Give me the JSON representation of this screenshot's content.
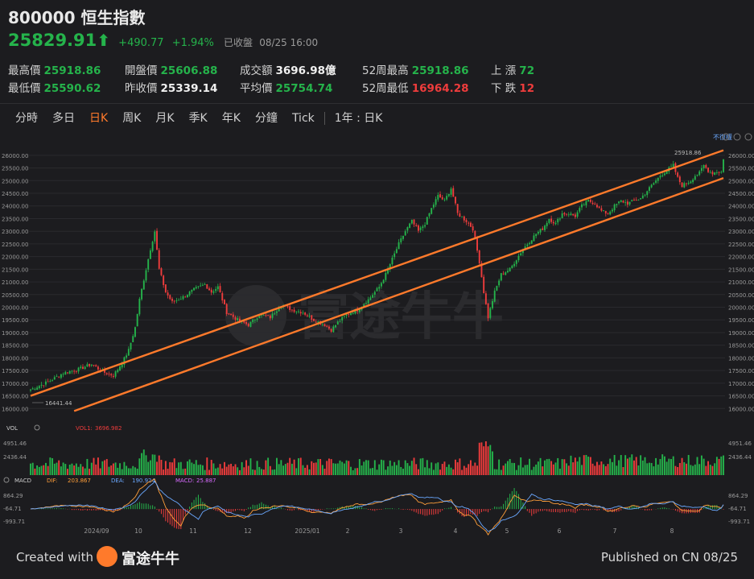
{
  "header": {
    "code": "800000",
    "name": "恒生指數",
    "price": "25829.91",
    "change": "+490.77",
    "change_pct": "+1.94%",
    "status": "已收盤",
    "time": "08/25 16:00"
  },
  "stats": [
    {
      "label": "最高價",
      "value": "25918.86",
      "tone": "g"
    },
    {
      "label": "開盤價",
      "value": "25606.88",
      "tone": "g"
    },
    {
      "label": "成交額",
      "value": "3696.98億",
      "tone": "w"
    },
    {
      "label": "52周最高",
      "value": "25918.86",
      "tone": "g"
    },
    {
      "label": "上  漲",
      "value": "72",
      "tone": "g"
    },
    {
      "label": "最低價",
      "value": "25590.62",
      "tone": "g"
    },
    {
      "label": "昨收價",
      "value": "25339.14",
      "tone": "w"
    },
    {
      "label": "平均價",
      "value": "25754.74",
      "tone": "g"
    },
    {
      "label": "52周最低",
      "value": "16964.28",
      "tone": "r"
    },
    {
      "label": "下  跌",
      "value": "12",
      "tone": "r"
    }
  ],
  "tabs": [
    "分時",
    "多日",
    "日K",
    "周K",
    "月K",
    "季K",
    "年K",
    "分鐘",
    "Tick"
  ],
  "active_tab": "日K",
  "range_label": "1年 : 日K",
  "chart_data": {
    "type": "candlestick",
    "right_label": "不復權",
    "y_ticks": [
      "26000.00",
      "25500.00",
      "25000.00",
      "24500.00",
      "24000.00",
      "23500.00",
      "23000.00",
      "22500.00",
      "22000.00",
      "21500.00",
      "21000.00",
      "20500.00",
      "20000.00",
      "19500.00",
      "19000.00",
      "18500.00",
      "18000.00",
      "17500.00",
      "17000.00",
      "16500.00",
      "16000.00"
    ],
    "ylim": [
      15850,
      26250
    ],
    "x_labels": [
      "2024/09",
      "10",
      "11",
      "12",
      "2025/01",
      "2",
      "3",
      "4",
      "5",
      "6",
      "7",
      "8"
    ],
    "annotation_high": "25918.86",
    "annotation_low": "16441.44",
    "close_path": [
      [
        0,
        16750
      ],
      [
        8,
        17050
      ],
      [
        15,
        17400
      ],
      [
        22,
        17550
      ],
      [
        28,
        17750
      ],
      [
        33,
        17450
      ],
      [
        38,
        17300
      ],
      [
        42,
        17800
      ],
      [
        45,
        18300
      ],
      [
        48,
        19200
      ],
      [
        50,
        20300
      ],
      [
        53,
        21500
      ],
      [
        55,
        22300
      ],
      [
        57,
        23000
      ],
      [
        59,
        21500
      ],
      [
        62,
        20600
      ],
      [
        65,
        20200
      ],
      [
        70,
        20400
      ],
      [
        75,
        20700
      ],
      [
        80,
        20900
      ],
      [
        83,
        20600
      ],
      [
        86,
        20800
      ],
      [
        90,
        19800
      ],
      [
        95,
        19500
      ],
      [
        100,
        19300
      ],
      [
        105,
        19700
      ],
      [
        110,
        19600
      ],
      [
        115,
        20100
      ],
      [
        120,
        19900
      ],
      [
        125,
        19800
      ],
      [
        130,
        19500
      ],
      [
        135,
        19300
      ],
      [
        138,
        19100
      ],
      [
        141,
        19400
      ],
      [
        145,
        19700
      ],
      [
        150,
        19900
      ],
      [
        155,
        20300
      ],
      [
        160,
        20800
      ],
      [
        163,
        21300
      ],
      [
        166,
        21900
      ],
      [
        169,
        22500
      ],
      [
        172,
        23000
      ],
      [
        175,
        23400
      ],
      [
        178,
        23000
      ],
      [
        181,
        23300
      ],
      [
        184,
        23900
      ],
      [
        187,
        24400
      ],
      [
        190,
        24200
      ],
      [
        193,
        24700
      ],
      [
        196,
        23700
      ],
      [
        200,
        23400
      ],
      [
        203,
        23100
      ],
      [
        206,
        21800
      ],
      [
        208,
        20600
      ],
      [
        210,
        19600
      ],
      [
        213,
        20600
      ],
      [
        216,
        21300
      ],
      [
        220,
        21500
      ],
      [
        223,
        21900
      ],
      [
        226,
        22300
      ],
      [
        229,
        22600
      ],
      [
        232,
        22900
      ],
      [
        235,
        23100
      ],
      [
        238,
        23500
      ],
      [
        241,
        23300
      ],
      [
        244,
        23700
      ],
      [
        247,
        23700
      ],
      [
        250,
        23600
      ],
      [
        253,
        24000
      ],
      [
        256,
        24200
      ],
      [
        259,
        24100
      ],
      [
        262,
        23800
      ],
      [
        265,
        23700
      ],
      [
        268,
        24000
      ],
      [
        271,
        24200
      ],
      [
        274,
        24100
      ],
      [
        277,
        24200
      ],
      [
        280,
        24300
      ],
      [
        283,
        24600
      ],
      [
        286,
        24900
      ],
      [
        289,
        25200
      ],
      [
        292,
        25400
      ],
      [
        295,
        25600
      ],
      [
        297,
        25100
      ],
      [
        299,
        24800
      ],
      [
        301,
        24900
      ],
      [
        303,
        25000
      ],
      [
        305,
        25200
      ],
      [
        307,
        25300
      ],
      [
        309,
        25600
      ],
      [
        311,
        25400
      ],
      [
        313,
        25300
      ],
      [
        315,
        25350
      ],
      [
        317,
        25339
      ],
      [
        318,
        25830
      ]
    ],
    "channel_upper": [
      [
        0,
        16500
      ],
      [
        318,
        26200
      ]
    ],
    "channel_lower": [
      [
        20,
        15900
      ],
      [
        318,
        25100
      ]
    ],
    "vol": {
      "label": "VOL",
      "series": "VOL1:",
      "value": "3696.982",
      "ticks": [
        "4951.46",
        "2436.44"
      ]
    },
    "macd": {
      "label": "MACD",
      "dif_label": "DIF:",
      "dif": "203.867",
      "dea_label": "DEA:",
      "dea": "190.924",
      "macd_label": "MACD:",
      "macd": "25.887",
      "ticks": [
        "864.29",
        "-64.71",
        "-993.71"
      ]
    }
  },
  "footer": {
    "created": "Created with",
    "brand": "富途牛牛",
    "published": "Published on CN 08/25"
  },
  "watermark": "富途牛牛",
  "colors": {
    "up": "#25b34b",
    "down": "#ee3c3c",
    "channel": "#ff7a2b",
    "accent": "#ff7a2b",
    "bg": "#1c1c1f"
  }
}
